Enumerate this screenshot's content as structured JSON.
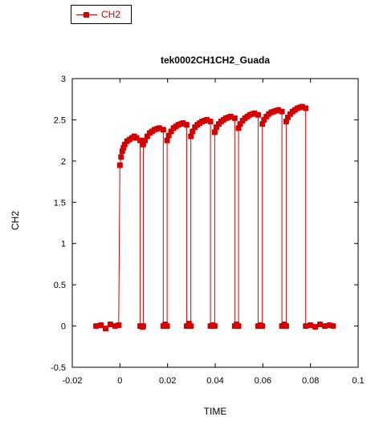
{
  "chart_data": {
    "type": "line",
    "title": "tek0002CH1CH2_Guada",
    "xlabel": "TIME",
    "ylabel": "CH2",
    "xlim": [
      -0.02,
      0.1
    ],
    "ylim": [
      -0.5,
      3
    ],
    "xticks": [
      "-0.02",
      "0",
      "0.02",
      "0.04",
      "0.06",
      "0.08",
      "0.1"
    ],
    "yticks": [
      "-0.5",
      "0",
      "0.5",
      "1",
      "1.5",
      "2",
      "2.5",
      "3"
    ],
    "grid": false,
    "legend_position": "top-left",
    "color": "#d40000",
    "series": [
      {
        "name": "CH2",
        "marker": "square",
        "x": [
          -0.01,
          -0.008,
          -0.006,
          -0.004,
          -0.002,
          -0.0005,
          0.0,
          0.0005,
          0.001,
          0.0015,
          0.002,
          0.003,
          0.004,
          0.005,
          0.006,
          0.007,
          0.0085,
          0.0085,
          0.0095,
          0.0098,
          0.0098,
          0.0105,
          0.0115,
          0.0125,
          0.0135,
          0.0145,
          0.0155,
          0.0165,
          0.0182,
          0.0182,
          0.019,
          0.0198,
          0.0198,
          0.0205,
          0.0215,
          0.0225,
          0.0235,
          0.0245,
          0.0255,
          0.0265,
          0.028,
          0.028,
          0.029,
          0.0298,
          0.0298,
          0.0305,
          0.0315,
          0.0325,
          0.0335,
          0.0345,
          0.0355,
          0.0365,
          0.038,
          0.038,
          0.039,
          0.0398,
          0.0398,
          0.0405,
          0.0415,
          0.0425,
          0.0435,
          0.0445,
          0.0455,
          0.0465,
          0.0482,
          0.0482,
          0.049,
          0.0498,
          0.0498,
          0.0505,
          0.0515,
          0.0525,
          0.0535,
          0.0545,
          0.0555,
          0.0565,
          0.058,
          0.058,
          0.059,
          0.0598,
          0.0598,
          0.0605,
          0.0615,
          0.0625,
          0.0635,
          0.0645,
          0.0655,
          0.0665,
          0.068,
          0.068,
          0.069,
          0.0698,
          0.0698,
          0.0705,
          0.0715,
          0.0725,
          0.0735,
          0.0745,
          0.0755,
          0.0765,
          0.078,
          0.078,
          0.08,
          0.082,
          0.084,
          0.086,
          0.088,
          0.0895
        ],
        "y": [
          0.0,
          0.01,
          -0.03,
          0.02,
          0.0,
          0.01,
          1.95,
          2.05,
          2.12,
          2.16,
          2.2,
          2.24,
          2.26,
          2.28,
          2.3,
          2.28,
          2.25,
          0.0,
          -0.01,
          0.0,
          2.2,
          2.25,
          2.3,
          2.34,
          2.36,
          2.38,
          2.39,
          2.4,
          2.38,
          0.0,
          0.02,
          0.0,
          2.25,
          2.31,
          2.36,
          2.4,
          2.42,
          2.44,
          2.45,
          2.46,
          2.44,
          0.0,
          0.03,
          0.0,
          2.3,
          2.36,
          2.41,
          2.44,
          2.46,
          2.48,
          2.49,
          2.5,
          2.48,
          0.0,
          0.01,
          0.0,
          2.35,
          2.41,
          2.45,
          2.48,
          2.5,
          2.52,
          2.53,
          2.54,
          2.52,
          0.0,
          0.02,
          0.0,
          2.4,
          2.45,
          2.49,
          2.52,
          2.54,
          2.56,
          2.57,
          2.58,
          2.56,
          0.0,
          0.01,
          0.0,
          2.45,
          2.5,
          2.54,
          2.57,
          2.59,
          2.6,
          2.61,
          2.62,
          2.6,
          0.0,
          0.02,
          0.0,
          2.48,
          2.53,
          2.57,
          2.6,
          2.62,
          2.64,
          2.65,
          2.66,
          2.64,
          0.0,
          0.01,
          -0.01,
          0.02,
          0.0,
          0.01,
          0.0
        ]
      }
    ]
  }
}
